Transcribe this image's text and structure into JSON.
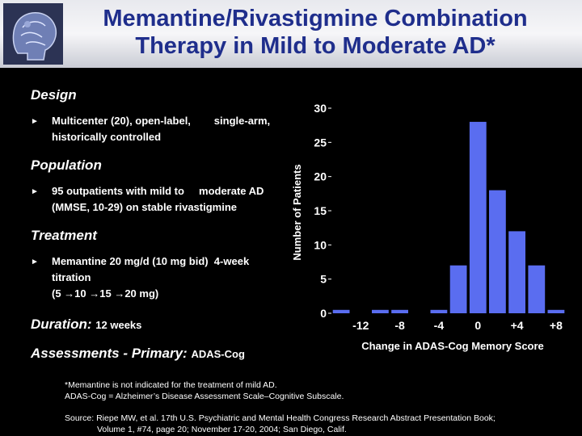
{
  "header": {
    "title_line1": "Memantine/Rivastigmine Combination",
    "title_line2": "Therapy in Mild to Moderate AD*"
  },
  "design": {
    "heading": "Design",
    "bullet_line1": "Multicenter (20), open-label,        single-arm,",
    "bullet_line2": "historically controlled"
  },
  "population": {
    "heading": "Population",
    "bullet_line1": "95 outpatients with mild to     moderate AD",
    "bullet_line2": "(MMSE, 10-29) on stable rivastigmine"
  },
  "treatment": {
    "heading": "Treatment",
    "bullet_line1": "Memantine 20 mg/d (10 mg bid)  4-week",
    "bullet_line2": "titration",
    "bullet_line3": "(5 →10 →15 →20 mg)"
  },
  "duration": {
    "label": "Duration:",
    "value": "12 weeks"
  },
  "assessments": {
    "label": "Assessments - Primary:",
    "value": "ADAS-Cog"
  },
  "footnotes": {
    "line1": "*Memantine is not indicated for the treatment of mild AD.",
    "line2": "ADAS-Cog = Alzheimer’s Disease Assessment Scale–Cognitive Subscale."
  },
  "source": {
    "line1": "Source: Riepe MW, et al. 17th U.S. Psychiatric and Mental Health Congress Research Abstract Presentation Book;",
    "line2": "Volume 1, #74, page 20; November 17-20, 2004; San Diego, Calif."
  },
  "colors": {
    "background": "#000000",
    "title": "#1f2e8c",
    "bar": "#5a6df0"
  },
  "chart_data": {
    "type": "bar",
    "xlabel": "Change in ADAS-Cog Memory Score",
    "ylabel": "Number of Patients",
    "ylim": [
      0,
      30
    ],
    "yticks": [
      0,
      5,
      10,
      15,
      20,
      25,
      30
    ],
    "xtick_labels": [
      "-12",
      "-8",
      "-4",
      "0",
      "+4",
      "+8"
    ],
    "categories": [
      "-14",
      "-12",
      "-10",
      "-8",
      "-6",
      "-4",
      "-2",
      "0",
      "2",
      "4",
      "6",
      "8"
    ],
    "values": [
      0.5,
      0,
      0.5,
      0.5,
      0,
      0.5,
      7,
      28,
      18,
      12,
      7,
      0.5
    ]
  }
}
